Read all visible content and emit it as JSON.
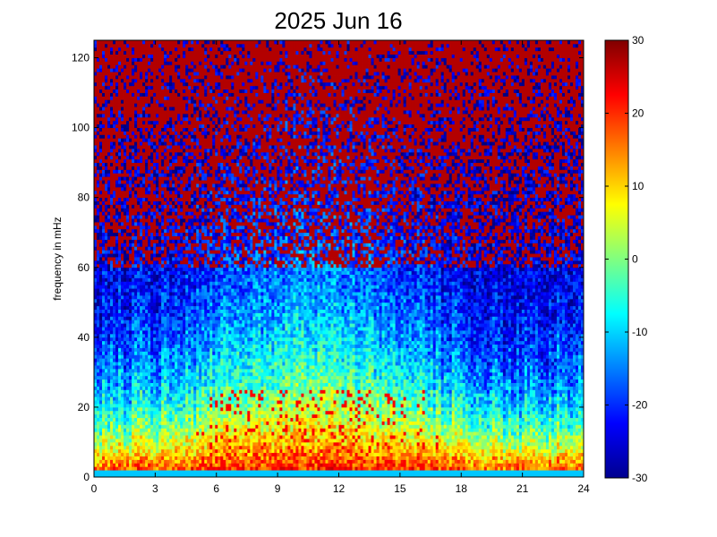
{
  "chart_data": {
    "type": "heatmap",
    "title": "2025 Jun 16",
    "xlabel": "",
    "ylabel": "frequency in mHz",
    "xlim": [
      0,
      24
    ],
    "ylim": [
      0,
      125
    ],
    "x_ticks": [
      "0",
      "3",
      "6",
      "9",
      "12",
      "15",
      "18",
      "21",
      "24"
    ],
    "y_ticks": [
      "0",
      "20",
      "40",
      "60",
      "80",
      "100",
      "120"
    ],
    "colorbar": {
      "colormap": "jet",
      "clim": [
        -30,
        30
      ],
      "ticks": [
        "-30",
        "-20",
        "-10",
        "0",
        "10",
        "20",
        "30"
      ]
    },
    "grid": false
  }
}
